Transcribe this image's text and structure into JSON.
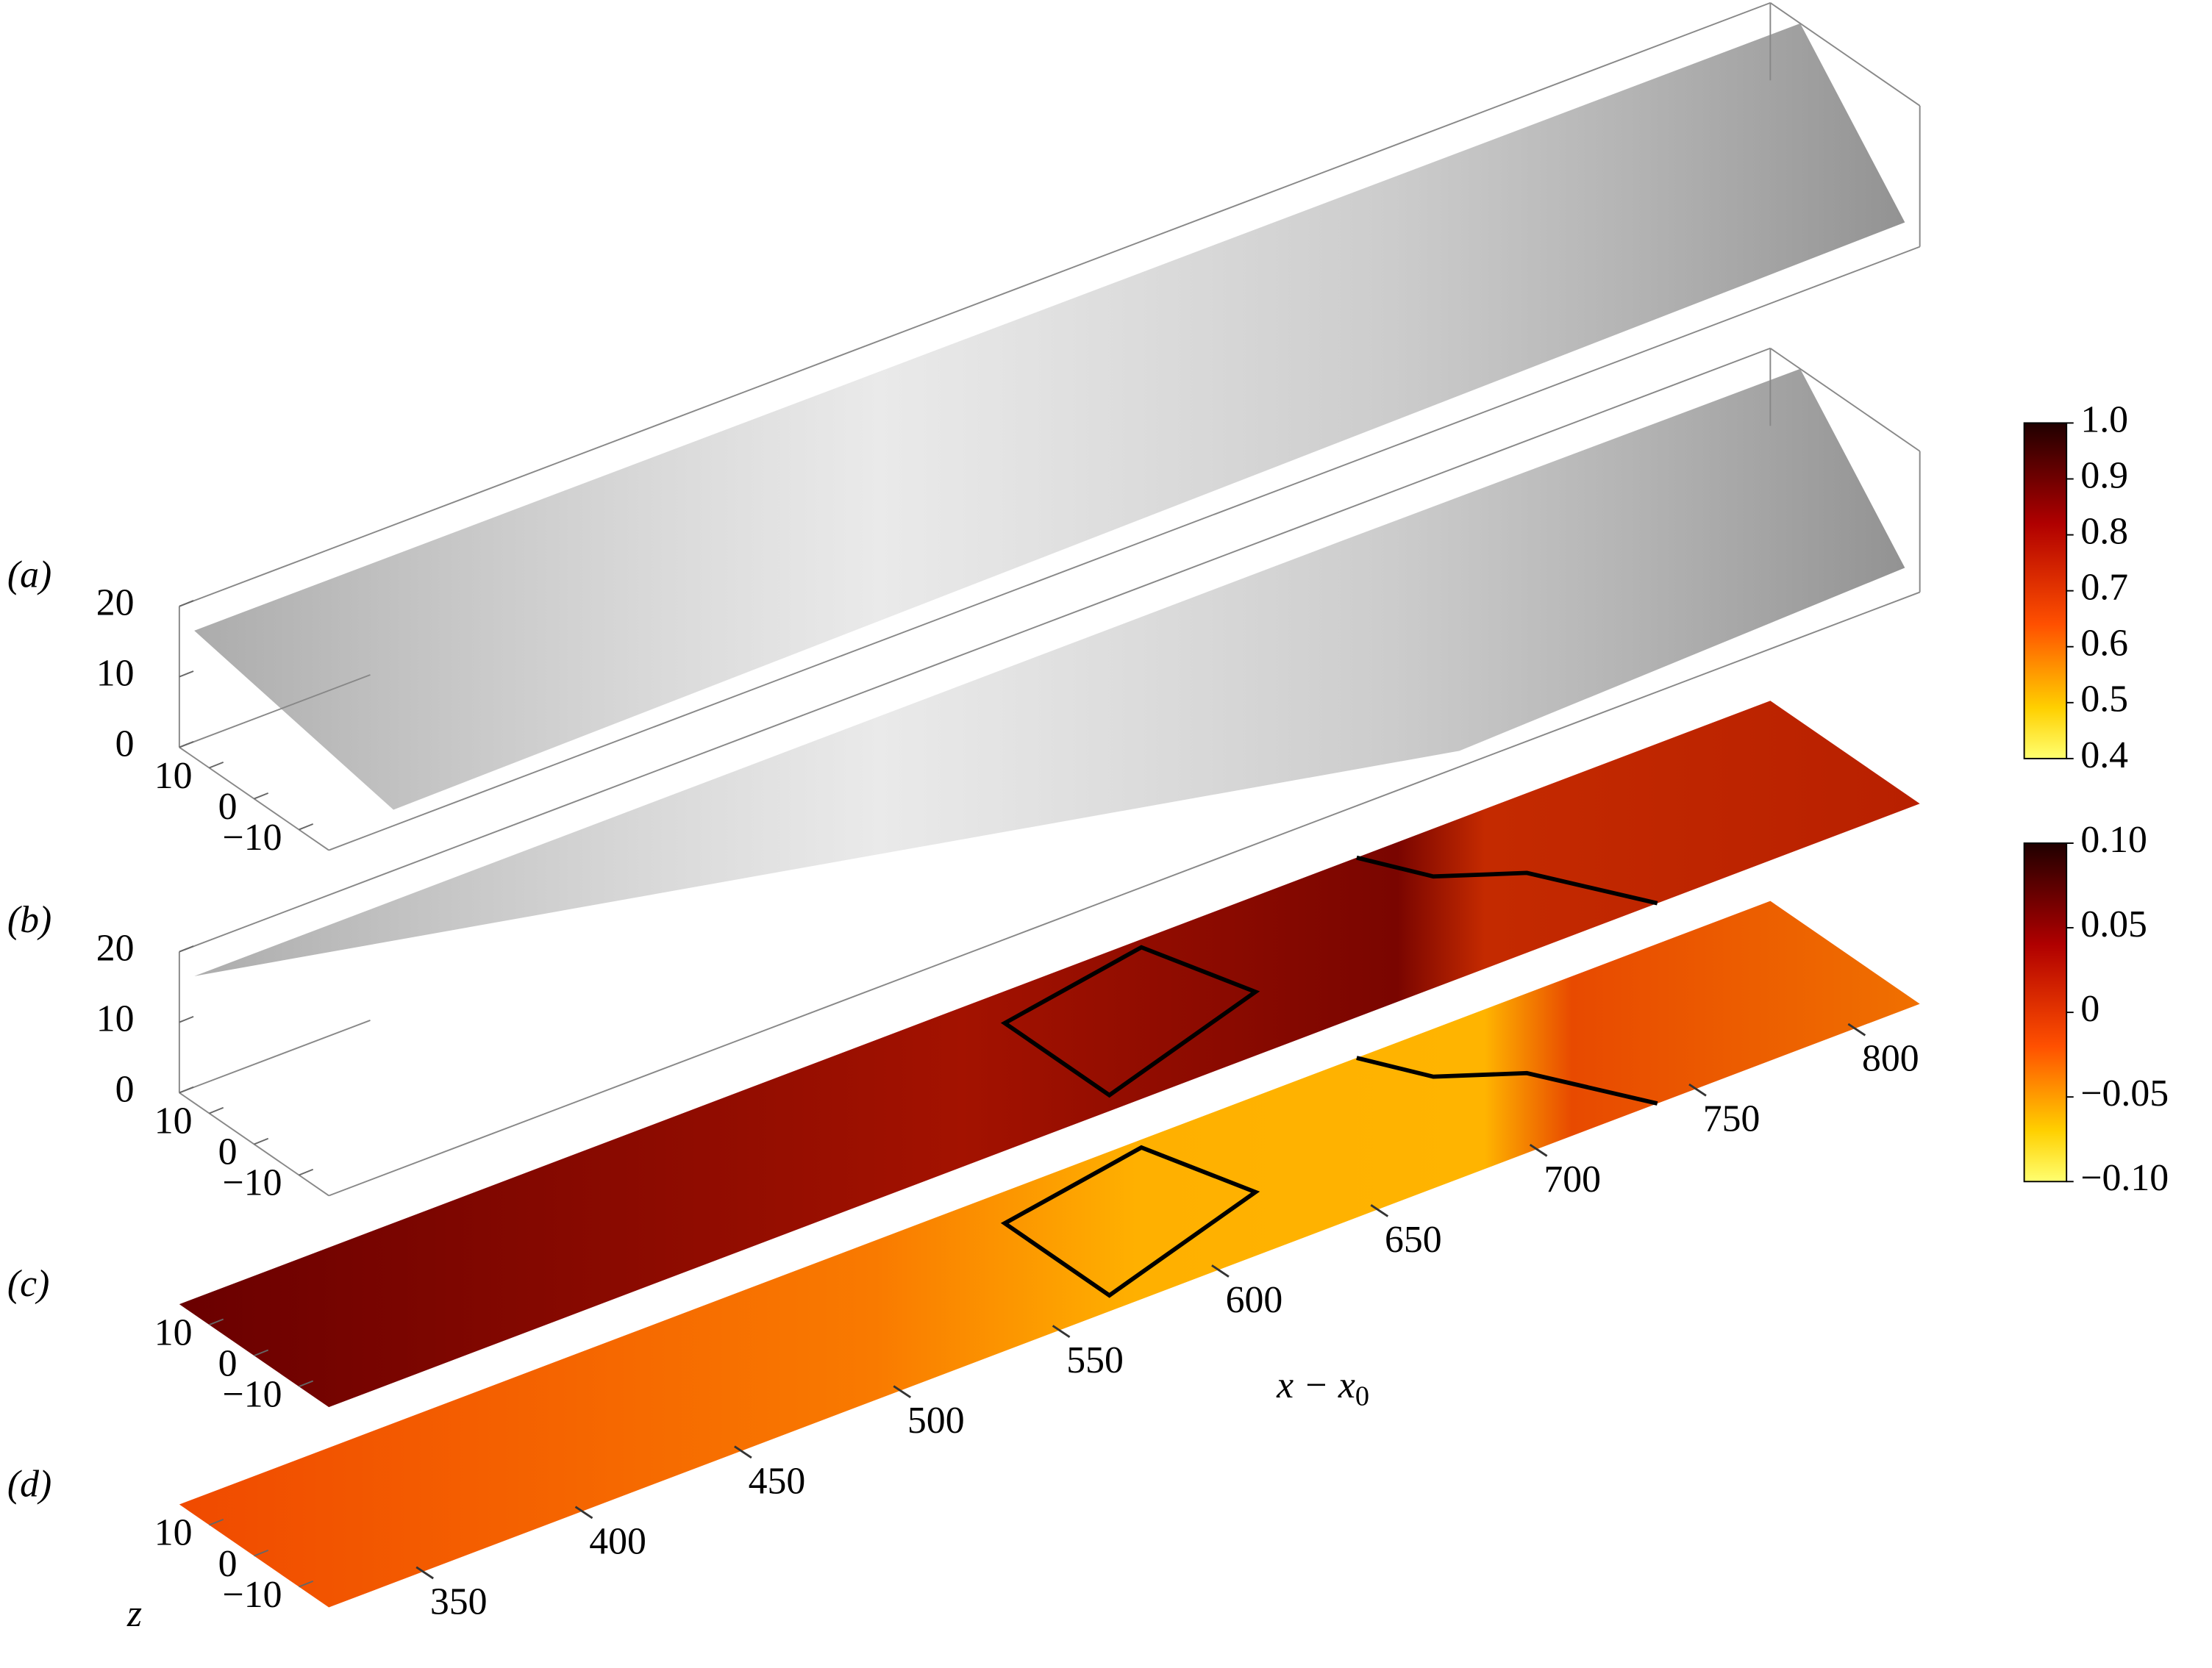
{
  "panels": [
    {
      "label": "(a)",
      "height_ticks": [
        "20",
        "10",
        "0"
      ],
      "depth_ticks": [
        "10",
        "0",
        "−10"
      ]
    },
    {
      "label": "(b)",
      "height_ticks": [
        "20",
        "10",
        "0"
      ],
      "depth_ticks": [
        "10",
        "0",
        "−10"
      ]
    },
    {
      "label": "(c)",
      "depth_ticks": [
        "10",
        "0",
        "−10"
      ]
    },
    {
      "label": "(d)",
      "depth_ticks": [
        "10",
        "0",
        "−10"
      ],
      "depth_label": "z"
    }
  ],
  "x_axis": {
    "label": "x − x",
    "label_subscript": "0",
    "ticks": [
      "350",
      "400",
      "450",
      "500",
      "550",
      "600",
      "650",
      "700",
      "750",
      "800"
    ]
  },
  "colorbars": [
    {
      "ticks": [
        "1.0",
        "0.9",
        "0.8",
        "0.7",
        "0.6",
        "0.5",
        "0.4"
      ]
    },
    {
      "ticks": [
        "0.10",
        "0.05",
        "0",
        "−0.05",
        "−0.10"
      ]
    }
  ]
}
